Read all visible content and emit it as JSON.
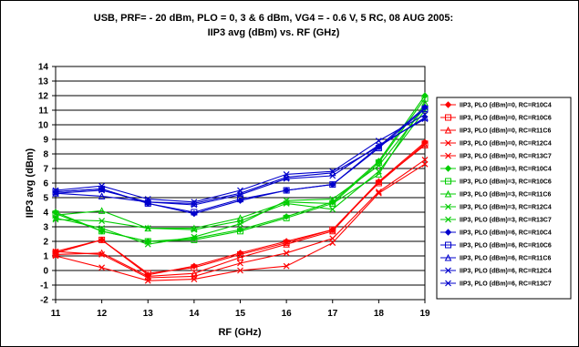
{
  "chart_data": {
    "type": "line",
    "title_line1": "USB, PRF= - 20 dBm, PLO = 0, 3 & 6 dBm, VG4 = - 0.6 V, 5 RC, 08 AUG 2005:",
    "title_line2": "IIP3 avg (dBm) vs. RF (GHz)",
    "xlabel": "RF (GHz)",
    "ylabel": "IIP3 avg (dBm)",
    "x": [
      11,
      12,
      13,
      14,
      15,
      16,
      17,
      18,
      19
    ],
    "xlim": [
      11,
      19
    ],
    "ylim": [
      -2,
      14
    ],
    "x_ticks": [
      "11",
      "12",
      "13",
      "14",
      "15",
      "16",
      "17",
      "18",
      "19"
    ],
    "y_ticks": [
      "-2",
      "-1",
      "0",
      "1",
      "2",
      "3",
      "4",
      "5",
      "6",
      "7",
      "8",
      "9",
      "10",
      "11",
      "12",
      "13",
      "14"
    ],
    "grid": true,
    "legend_position": "right",
    "series": [
      {
        "name": "IIP3, PLO (dBm)=0, RC=R10C4",
        "color": "#ff0000",
        "marker": "diamond",
        "values": [
          1.3,
          2.1,
          -0.3,
          0.3,
          1.2,
          2.0,
          2.8,
          6.1,
          8.8
        ]
      },
      {
        "name": "IIP3, PLO (dBm)=0, RC=R10C6",
        "color": "#ff0000",
        "marker": "square",
        "values": [
          1.2,
          2.1,
          -0.2,
          0.2,
          1.1,
          1.9,
          2.8,
          6.0,
          8.7
        ]
      },
      {
        "name": "IIP3, PLO (dBm)=0, RC=R11C6",
        "color": "#ff0000",
        "marker": "triangle",
        "values": [
          1.1,
          1.2,
          -0.4,
          -0.2,
          0.9,
          1.8,
          2.7,
          6.1,
          8.6
        ]
      },
      {
        "name": "IIP3, PLO (dBm)=0, RC=R12C4",
        "color": "#ff0000",
        "marker": "x",
        "values": [
          1.0,
          0.2,
          -0.7,
          -0.6,
          0.0,
          0.3,
          1.9,
          5.3,
          7.3
        ]
      },
      {
        "name": "IIP3, PLO (dBm)=0, RC=R13C7",
        "color": "#ff0000",
        "marker": "x",
        "values": [
          1.3,
          1.1,
          -0.5,
          -0.4,
          0.5,
          1.2,
          2.2,
          5.4,
          7.6
        ]
      },
      {
        "name": "IIP3, PLO (dBm)=3, RC=R10C4",
        "color": "#00cc00",
        "marker": "diamond",
        "values": [
          4.0,
          2.7,
          2.0,
          2.2,
          2.8,
          3.7,
          4.7,
          7.5,
          12.0
        ]
      },
      {
        "name": "IIP3, PLO (dBm)=3, RC=R10C6",
        "color": "#00cc00",
        "marker": "square",
        "values": [
          3.9,
          2.7,
          2.0,
          2.1,
          2.7,
          3.6,
          4.6,
          7.4,
          11.8
        ]
      },
      {
        "name": "IIP3, PLO (dBm)=3, RC=R11C6",
        "color": "#00cc00",
        "marker": "triangle",
        "values": [
          3.8,
          4.1,
          2.9,
          2.9,
          3.6,
          4.7,
          4.6,
          6.6,
          11.5
        ]
      },
      {
        "name": "IIP3, PLO (dBm)=3, RC=R12C4",
        "color": "#00cc00",
        "marker": "x",
        "values": [
          3.5,
          3.4,
          2.9,
          2.8,
          3.4,
          4.6,
          4.2,
          6.8,
          11.0
        ]
      },
      {
        "name": "IIP3, PLO (dBm)=3, RC=R13C7",
        "color": "#00cc00",
        "marker": "x",
        "values": [
          3.6,
          2.9,
          1.8,
          2.3,
          3.2,
          4.8,
          4.9,
          7.2,
          11.2
        ]
      },
      {
        "name": "IIP3, PLO (dBm)=6, RC=R10C4",
        "color": "#0000cc",
        "marker": "diamond",
        "values": [
          5.4,
          5.6,
          4.6,
          3.9,
          4.8,
          5.5,
          5.9,
          8.5,
          11.2
        ]
      },
      {
        "name": "IIP3, PLO (dBm)=6, RC=R10C6",
        "color": "#0000cc",
        "marker": "square",
        "values": [
          5.4,
          5.6,
          4.6,
          4.0,
          4.9,
          5.5,
          5.9,
          8.4,
          11.1
        ]
      },
      {
        "name": "IIP3, PLO (dBm)=6, RC=R11C6",
        "color": "#0000cc",
        "marker": "triangle",
        "values": [
          5.3,
          5.1,
          4.7,
          4.6,
          5.3,
          6.4,
          6.7,
          8.5,
          10.5
        ]
      },
      {
        "name": "IIP3, PLO (dBm)=6, RC=R12C4",
        "color": "#0000cc",
        "marker": "x",
        "values": [
          5.5,
          5.8,
          4.9,
          4.7,
          5.5,
          6.6,
          6.8,
          8.9,
          10.7
        ]
      },
      {
        "name": "IIP3, PLO (dBm)=6, RC=R13C7",
        "color": "#0000cc",
        "marker": "x",
        "values": [
          5.3,
          5.5,
          4.7,
          4.5,
          5.2,
          6.3,
          6.5,
          8.6,
          10.4
        ]
      }
    ]
  }
}
